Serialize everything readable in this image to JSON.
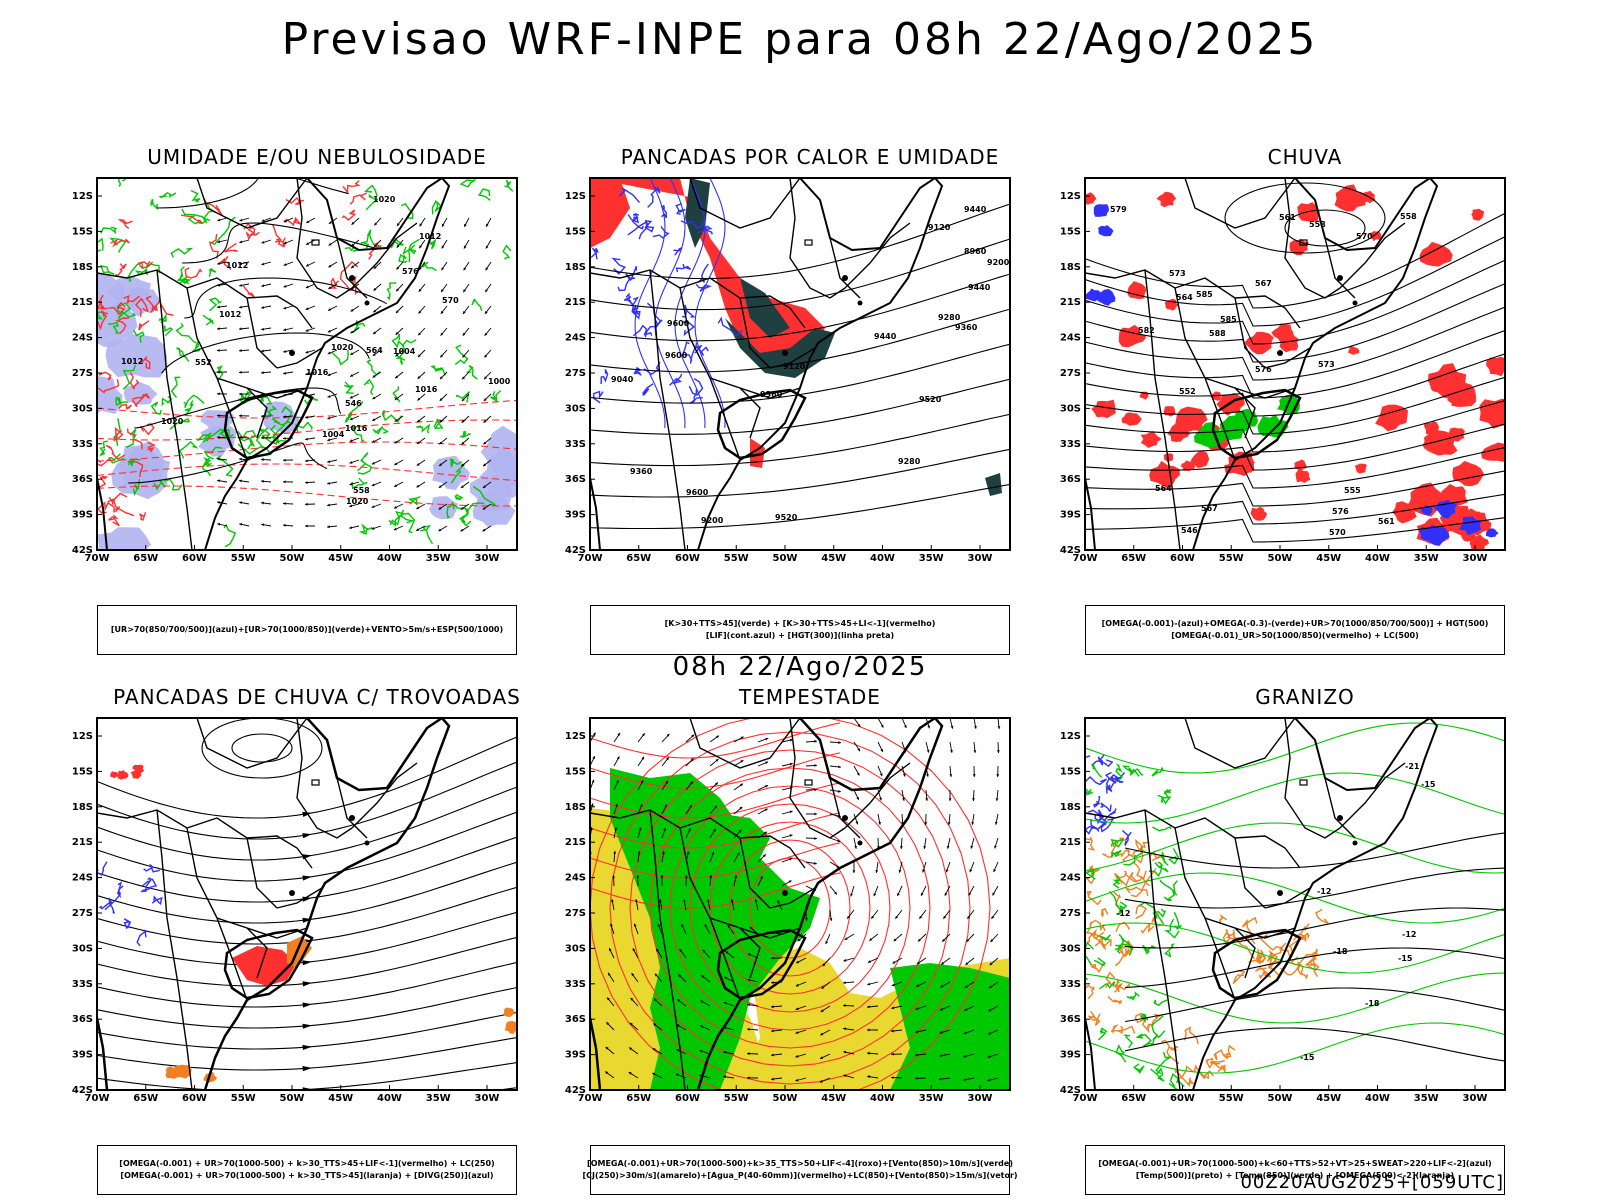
{
  "header": {
    "title": "Previsao WRF-INPE  para 08h 22/Ago/2025"
  },
  "middle": {
    "title": "08h 22/Ago/2025"
  },
  "footer": {
    "run": "00Z20AUG2025+[059UTC]"
  },
  "axes": {
    "lat_ticks": [
      "12S",
      "15S",
      "18S",
      "21S",
      "24S",
      "27S",
      "30S",
      "33S",
      "36S",
      "39S",
      "42S"
    ],
    "lon_ticks": [
      "70W",
      "65W",
      "60W",
      "55W",
      "50W",
      "45W",
      "40W",
      "35W",
      "30W"
    ]
  },
  "colors": {
    "blue": "#3030ff",
    "green": "#00c800",
    "red": "#ff3030",
    "orange": "#f08020",
    "yellow": "#e8d830",
    "darkgreen": "#1f4040",
    "lavender": "#b0b4f0",
    "purple": "#8060c0"
  },
  "panels": [
    {
      "id": "umidade",
      "title": "UMIDADE E/OU NEBULOSIDADE",
      "legend": [
        "[UR>70(850/700/500)](azul)+[UR>70(1000/850)](verde)+VENTO>5m/s+ESP(500/1000)"
      ],
      "contour_labels": [
        "1012",
        "1020",
        "1016",
        "1012",
        "1004",
        "1000",
        "1012",
        "1020",
        "1020",
        "1012",
        "1016",
        "1004",
        "1020",
        "1016",
        "564",
        "558",
        "552",
        "546",
        "570",
        "576"
      ]
    },
    {
      "id": "pancadas-calor",
      "title": "PANCADAS POR CALOR E UMIDADE",
      "legend": [
        "[K>30+TTS>45](verde) + [K>30+TTS>45+LI<-1](vermelho)",
        "[LIF](cont.azul) + [HGT(300)](linha preta)"
      ],
      "contour_labels": [
        "9600",
        "9600",
        "9600",
        "9520",
        "9440",
        "9360",
        "9200",
        "9280",
        "9120",
        "9040",
        "8960",
        "9520",
        "9440",
        "9360",
        "9280",
        "9200",
        "9120",
        "9440",
        "9360"
      ]
    },
    {
      "id": "chuva",
      "title": "CHUVA",
      "legend": [
        "[OMEGA(-0.001)-(azul)+OMEGA(-0.3)-(verde)+UR>70(1000/850/700/500)] + HGT(500)",
        "[OMEGA(-0.01)_UR>50(1000/850)(vermelho) + LC(500)"
      ],
      "contour_labels": [
        "588",
        "585",
        "585",
        "582",
        "579",
        "576",
        "573",
        "570",
        "567",
        "564",
        "561",
        "558",
        "555",
        "576",
        "573",
        "570",
        "567",
        "564",
        "561",
        "558",
        "552",
        "546"
      ]
    },
    {
      "id": "pancadas-trovoadas",
      "title": "PANCADAS DE CHUVA C/ TROVOADAS",
      "legend": [
        "[OMEGA(-0.001) + UR>70(1000-500) + k>30_TTS>45+LIF<-1](vermelho) + LC(250)",
        "[OMEGA(-0.001) + UR>70(1000-500) + k>30_TTS>45](laranja) + [DIVG(250)](azul)"
      ],
      "contour_labels": []
    },
    {
      "id": "tempestade",
      "title": "TEMPESTADE",
      "legend": [
        "[OMEGA(-0.001)+UR>70(1000-500)+k>35_TTS>50+LIF<-4](roxo)+[Vento(850)>10m/s](verde)",
        "[CJ(250)>30m/s](amarelo)+[Agua_P(40-60mm)](vermelho)+LC(850)+[Vento(850)>15m/s](vetor)"
      ],
      "contour_labels": []
    },
    {
      "id": "granizo",
      "title": "GRANIZO",
      "legend": [
        "[OMEGA(-0.001)+UR>70(1000-500)+k<60+TTS>52+VT>25+SWEAT>220+LIF<-2](azul)",
        "[Temp(500)](preto) + [Temp(850)](verde) + [OMEGA(500)<-2](laranja)"
      ],
      "contour_labels": [
        "-12",
        "-12",
        "-12",
        "-15",
        "-15",
        "-18",
        "-18",
        "-21",
        "-15"
      ]
    }
  ]
}
